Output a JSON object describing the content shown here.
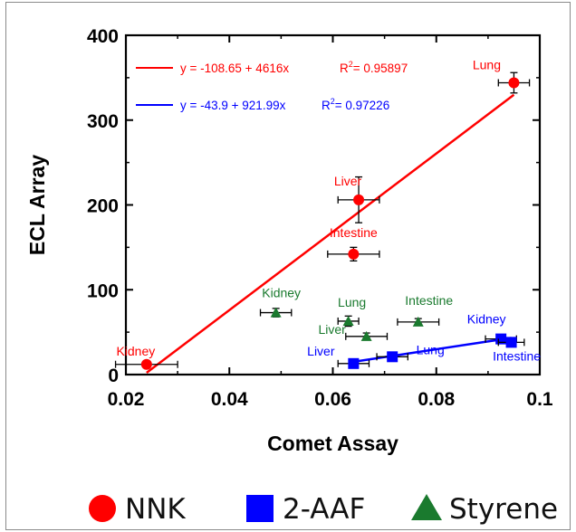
{
  "chart_data": {
    "type": "scatter",
    "xlabel": "Comet Assay",
    "ylabel": "ECL Array",
    "xlim": [
      0.02,
      0.1
    ],
    "ylim": [
      0,
      400
    ],
    "x_ticks": [
      "0.02",
      "0.04",
      "0.06",
      "0.08",
      "0.1"
    ],
    "y_ticks": [
      "0",
      "100",
      "200",
      "300",
      "400"
    ],
    "grid": false,
    "legend_position": "bottom",
    "series": [
      {
        "name": "NNK",
        "color": "#ff0000",
        "marker": "circle",
        "points": [
          {
            "label": "Kidney",
            "x": 0.024,
            "y": 12,
            "xerr": 0.006,
            "yerr": 4
          },
          {
            "label": "Intestine",
            "x": 0.064,
            "y": 142,
            "xerr": 0.005,
            "yerr": 8
          },
          {
            "label": "Liver",
            "x": 0.065,
            "y": 206,
            "xerr": 0.004,
            "yerr": 27
          },
          {
            "label": "Lung",
            "x": 0.095,
            "y": 344,
            "xerr": 0.003,
            "yerr": 12
          }
        ],
        "fit": {
          "equation": "y = -108.65 + 4616x",
          "r2_prefix": "R",
          "r2_sup": "2",
          "r2_value": "= 0.95897",
          "intercept": -108.65,
          "slope": 4616
        }
      },
      {
        "name": "2-AAF",
        "color": "#0000ff",
        "marker": "square",
        "points": [
          {
            "label": "Liver",
            "x": 0.064,
            "y": 13,
            "xerr": 0.003,
            "yerr": 2
          },
          {
            "label": "Lung",
            "x": 0.0715,
            "y": 21,
            "xerr": 0.003,
            "yerr": 2
          },
          {
            "label": "Kidney",
            "x": 0.0925,
            "y": 42,
            "xerr": 0.003,
            "yerr": 3
          },
          {
            "label": "Intestine",
            "x": 0.0945,
            "y": 38,
            "xerr": 0.0025,
            "yerr": 3
          }
        ],
        "fit": {
          "equation": "y = -43.9 + 921.99x",
          "r2_prefix": "R",
          "r2_sup": "2",
          "r2_value": "= 0.97226",
          "intercept": -43.9,
          "slope": 921.99
        }
      },
      {
        "name": "Styrene",
        "color": "#1a7a2e",
        "marker": "triangle",
        "points": [
          {
            "label": "Kidney",
            "x": 0.049,
            "y": 73,
            "xerr": 0.003,
            "yerr": 5
          },
          {
            "label": "Lung",
            "x": 0.063,
            "y": 63,
            "xerr": 0.002,
            "yerr": 6
          },
          {
            "label": "Liver",
            "x": 0.0665,
            "y": 45,
            "xerr": 0.004,
            "yerr": 4
          },
          {
            "label": "Intestine",
            "x": 0.0765,
            "y": 62,
            "xerr": 0.004,
            "yerr": 4
          }
        ]
      }
    ]
  }
}
